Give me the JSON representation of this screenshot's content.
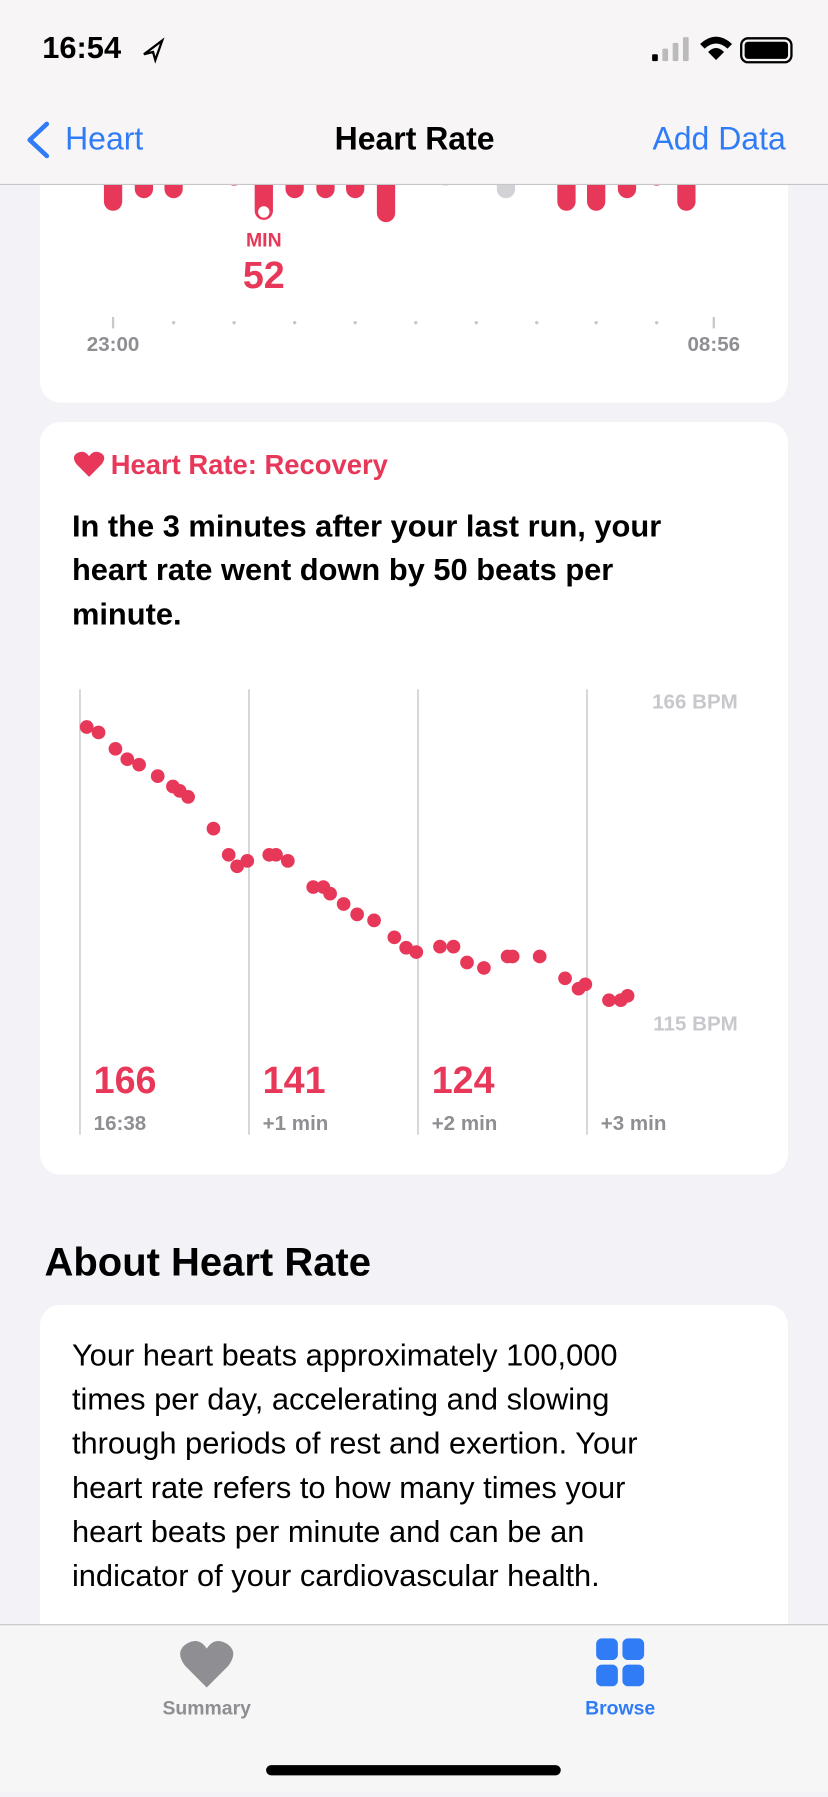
{
  "status_bar": {
    "time": "16:54"
  },
  "nav": {
    "back": "Heart",
    "title": "Heart Rate",
    "action": "Add Data"
  },
  "overnight_chart": {
    "min_label": "MIN",
    "min_value": 52,
    "x_start": "23:00",
    "x_end": "08:56"
  },
  "recovery": {
    "type": "scatter",
    "title": "Heart Rate: Recovery",
    "summary": [
      "In the 3 minutes after your last run, your",
      "heart rate went down by 50 beats per",
      "minute."
    ],
    "x": [
      0.04,
      0.11,
      0.21,
      0.28,
      0.35,
      0.46,
      0.55,
      0.59,
      0.64,
      0.79,
      0.88,
      0.93,
      0.99,
      1.12,
      1.16,
      1.23,
      1.38,
      1.44,
      1.48,
      1.56,
      1.64,
      1.74,
      1.86,
      1.93,
      1.99,
      2.13,
      2.21,
      2.29,
      2.39,
      2.53,
      2.56,
      2.72,
      2.87,
      2.95,
      2.99,
      3.13,
      3.2,
      3.24
    ],
    "values": [
      166,
      165,
      162,
      160.1,
      159.1,
      157,
      155.1,
      154.3,
      153.2,
      147.4,
      142.6,
      140.5,
      141.5,
      142.6,
      142.6,
      141.5,
      136.7,
      136.7,
      135.5,
      133.6,
      131.7,
      130.6,
      127.5,
      125.6,
      124.8,
      125.8,
      125.8,
      122.9,
      121.9,
      124,
      124,
      124,
      120,
      118.1,
      118.9,
      116,
      116,
      116.8
    ],
    "color": "#e8385a",
    "xlim": [
      0,
      3.6
    ],
    "ylim": [
      115,
      166
    ],
    "yticks": [
      {
        "value": 166,
        "label": "166 BPM"
      },
      {
        "value": 115,
        "label": "115 BPM"
      }
    ],
    "xticks": [
      {
        "value": 0,
        "label": "16:38"
      },
      {
        "value": 1,
        "label": "+1 min"
      },
      {
        "value": 2,
        "label": "+2 min"
      },
      {
        "value": 3,
        "label": "+3 min"
      }
    ],
    "tick_values": [
      166,
      141,
      124
    ]
  },
  "about": {
    "heading": "About Heart Rate",
    "text": [
      "Your heart beats approximately 100,000",
      "times per day, accelerating and slowing",
      "through periods of rest and exertion. Your",
      "heart rate refers to how many times your",
      "heart beats per minute and can be an",
      "indicator of your cardiovascular health."
    ]
  },
  "tab_bar": {
    "tabs": [
      "Summary",
      "Browse"
    ]
  }
}
